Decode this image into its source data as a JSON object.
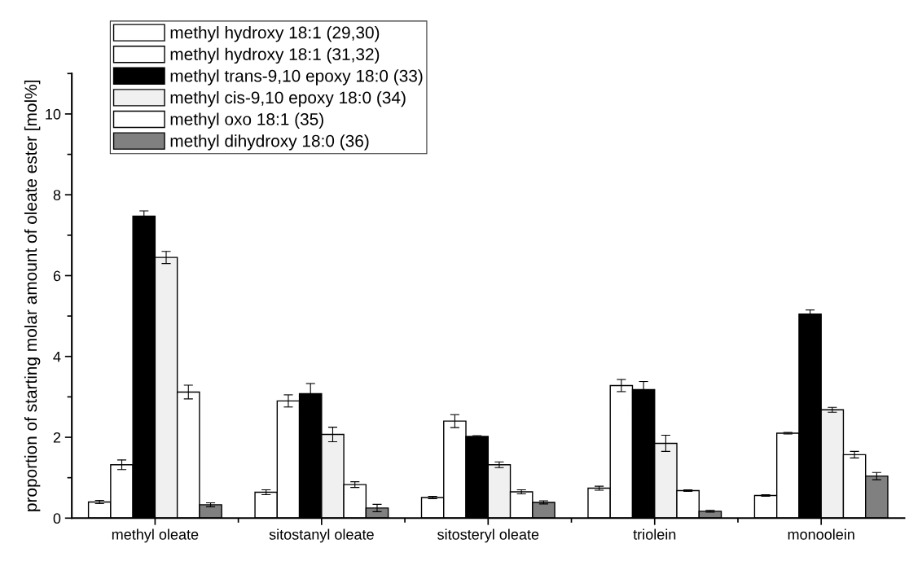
{
  "chart_data": {
    "type": "bar",
    "ylabel": "proportion of starting molar amount of oleate ester [mol%]",
    "categories": [
      "methyl oleate",
      "sitostanyl oleate",
      "sitosteryl oleate",
      "triolein",
      "monoolein"
    ],
    "ylim": [
      0,
      11
    ],
    "yticks": [
      0,
      2,
      4,
      6,
      8,
      10
    ],
    "grid": false,
    "legend": "top left",
    "series": [
      {
        "name": "methyl hydroxy 18:1 (29,30)",
        "color": "#ffffff",
        "values": [
          0.4,
          0.64,
          0.51,
          0.74,
          0.56
        ],
        "errors": [
          0.04,
          0.06,
          0.03,
          0.05,
          0.02
        ]
      },
      {
        "name": "methyl hydroxy 18:1 (31,32)",
        "color": "#ffffff",
        "values": [
          1.32,
          2.9,
          2.4,
          3.28,
          2.1
        ],
        "errors": [
          0.12,
          0.15,
          0.16,
          0.15,
          0.02
        ]
      },
      {
        "name": "methyl trans-9,10 epoxy 18:0 (33)",
        "color": "#000000",
        "values": [
          7.47,
          3.08,
          2.02,
          3.18,
          5.05
        ],
        "errors": [
          0.13,
          0.25,
          0.02,
          0.2,
          0.1
        ]
      },
      {
        "name": "methyl cis-9,10 epoxy 18:0 (34)",
        "color": "#f0f0f0",
        "values": [
          6.45,
          2.07,
          1.32,
          1.85,
          2.68
        ],
        "errors": [
          0.15,
          0.18,
          0.07,
          0.2,
          0.06
        ]
      },
      {
        "name": "methyl oxo 18:1 (35)",
        "color": "#ffffff",
        "values": [
          3.12,
          0.83,
          0.65,
          0.68,
          1.57
        ],
        "errors": [
          0.17,
          0.07,
          0.05,
          0.02,
          0.08
        ]
      },
      {
        "name": "methyl dihydroxy 18:0 (36)",
        "color": "#808080",
        "values": [
          0.33,
          0.25,
          0.39,
          0.17,
          1.04
        ],
        "errors": [
          0.05,
          0.09,
          0.04,
          0.02,
          0.09
        ]
      }
    ]
  }
}
